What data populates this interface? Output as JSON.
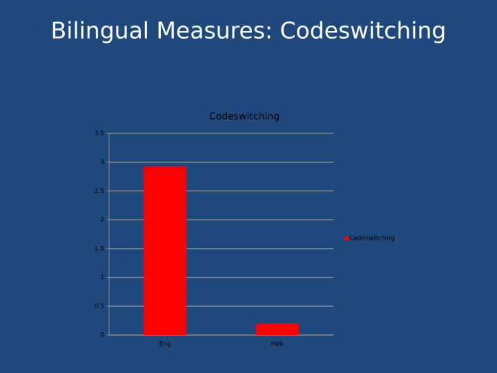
{
  "slide": {
    "title": "Bilingual Measures: Codeswitching"
  },
  "chart_data": {
    "type": "bar",
    "title": "Codeswitching",
    "categories": [
      "Eng",
      "Heb"
    ],
    "series": [
      {
        "name": "Codeswitching",
        "color": "#ff0000",
        "values": [
          2.93,
          0.2
        ]
      }
    ],
    "ylim": [
      0,
      3.5
    ],
    "yticks": [
      0,
      0.5,
      1,
      1.5,
      2,
      2.5,
      3,
      3.5
    ],
    "grid": true,
    "legend": "right"
  }
}
